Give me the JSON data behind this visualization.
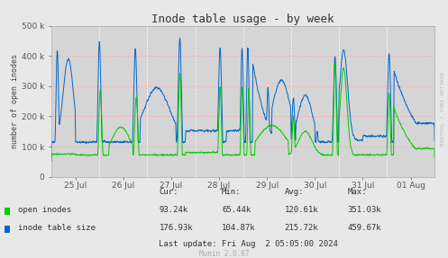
{
  "title": "Inode table usage - by week",
  "ylabel": "number of open inodes",
  "background_color": "#e8e8e8",
  "plot_bg_color": "#d5d5d5",
  "grid_white_color": "#ffffff",
  "grid_pink_color": "#ffaaaa",
  "green_color": "#00cc00",
  "blue_color": "#0066cc",
  "ylim": [
    0,
    500000
  ],
  "yticks": [
    0,
    100000,
    200000,
    300000,
    400000,
    500000
  ],
  "xlim": [
    0,
    8
  ],
  "xtick_positions": [
    0.5,
    1.5,
    2.5,
    3.5,
    4.5,
    5.5,
    6.5,
    7.5
  ],
  "xtick_labels": [
    "25 Jul",
    "26 Jul",
    "27 Jul",
    "28 Jul",
    "29 Jul",
    "30 Jul",
    "31 Jul",
    "01 Aug"
  ],
  "legend_open": "open inodes",
  "legend_table": "inode table size",
  "stats_headers": [
    "Cur:",
    "Min:",
    "Avg:",
    "Max:"
  ],
  "stats_green": [
    "93.24k",
    "65.44k",
    "120.61k",
    "351.03k"
  ],
  "stats_blue": [
    "176.93k",
    "104.87k",
    "215.72k",
    "459.67k"
  ],
  "last_update": "Last update: Fri Aug  2 05:05:00 2024",
  "munin_version": "Munin 2.0.67",
  "watermark": "RRDTOOL / TOBI OETIKER",
  "num_points": 2000
}
